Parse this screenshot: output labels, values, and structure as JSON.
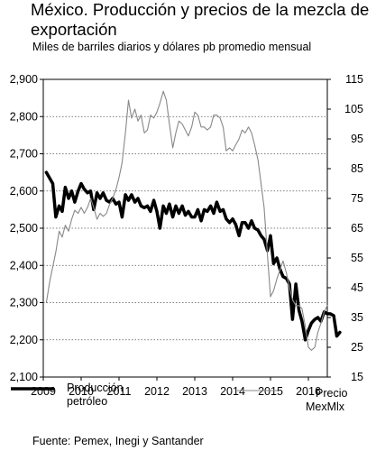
{
  "title": "México. Producción y precios de la mezcla de exportación",
  "subtitle": "Miles de barriles diarios y dólares pb promedio mensual",
  "source": "Fuente: Pemex, Inegi y Santander",
  "chart_data": {
    "type": "line",
    "x_ticks": [
      "2009",
      "2010",
      "2011",
      "2012",
      "2013",
      "2014",
      "2015",
      "2016"
    ],
    "xlim": [
      2009.0,
      2016.5
    ],
    "y_left": {
      "ticks": [
        "2,100",
        "2,200",
        "2,300",
        "2,400",
        "2,500",
        "2,600",
        "2,700",
        "2,800",
        "2,900"
      ],
      "ylim": [
        2100,
        2900
      ]
    },
    "y_right": {
      "ticks": [
        "15",
        "25",
        "35",
        "45",
        "55",
        "65",
        "75",
        "85",
        "95",
        "105",
        "115"
      ],
      "ylim": [
        15,
        115
      ]
    },
    "grid": "horizontal dotted",
    "legend_position": "bottom",
    "series": [
      {
        "name": "Producción petróleo",
        "axis": "left",
        "color": "#000000",
        "style": "thick solid",
        "points": [
          [
            2009.08,
            2650
          ],
          [
            2009.25,
            2620
          ],
          [
            2009.33,
            2530
          ],
          [
            2009.42,
            2560
          ],
          [
            2009.5,
            2545
          ],
          [
            2009.58,
            2610
          ],
          [
            2009.67,
            2580
          ],
          [
            2009.75,
            2600
          ],
          [
            2009.83,
            2570
          ],
          [
            2009.92,
            2600
          ],
          [
            2010.0,
            2620
          ],
          [
            2010.08,
            2605
          ],
          [
            2010.17,
            2595
          ],
          [
            2010.25,
            2600
          ],
          [
            2010.33,
            2550
          ],
          [
            2010.42,
            2595
          ],
          [
            2010.5,
            2580
          ],
          [
            2010.58,
            2595
          ],
          [
            2010.67,
            2575
          ],
          [
            2010.75,
            2570
          ],
          [
            2010.83,
            2580
          ],
          [
            2010.92,
            2565
          ],
          [
            2011.0,
            2570
          ],
          [
            2011.08,
            2530
          ],
          [
            2011.17,
            2590
          ],
          [
            2011.25,
            2575
          ],
          [
            2011.33,
            2590
          ],
          [
            2011.42,
            2570
          ],
          [
            2011.5,
            2580
          ],
          [
            2011.58,
            2560
          ],
          [
            2011.67,
            2555
          ],
          [
            2011.75,
            2560
          ],
          [
            2011.83,
            2545
          ],
          [
            2011.92,
            2575
          ],
          [
            2012.0,
            2545
          ],
          [
            2012.08,
            2500
          ],
          [
            2012.17,
            2560
          ],
          [
            2012.25,
            2540
          ],
          [
            2012.33,
            2565
          ],
          [
            2012.42,
            2530
          ],
          [
            2012.5,
            2560
          ],
          [
            2012.58,
            2540
          ],
          [
            2012.67,
            2560
          ],
          [
            2012.75,
            2535
          ],
          [
            2012.83,
            2545
          ],
          [
            2012.92,
            2530
          ],
          [
            2013.0,
            2530
          ],
          [
            2013.08,
            2550
          ],
          [
            2013.17,
            2520
          ],
          [
            2013.25,
            2550
          ],
          [
            2013.33,
            2545
          ],
          [
            2013.42,
            2560
          ],
          [
            2013.5,
            2540
          ],
          [
            2013.58,
            2570
          ],
          [
            2013.67,
            2545
          ],
          [
            2013.75,
            2550
          ],
          [
            2013.83,
            2525
          ],
          [
            2013.92,
            2515
          ],
          [
            2014.0,
            2525
          ],
          [
            2014.08,
            2510
          ],
          [
            2014.17,
            2480
          ],
          [
            2014.25,
            2515
          ],
          [
            2014.33,
            2515
          ],
          [
            2014.42,
            2500
          ],
          [
            2014.5,
            2520
          ],
          [
            2014.58,
            2500
          ],
          [
            2014.67,
            2495
          ],
          [
            2014.75,
            2480
          ],
          [
            2014.83,
            2470
          ],
          [
            2014.92,
            2440
          ],
          [
            2015.0,
            2480
          ],
          [
            2015.08,
            2405
          ],
          [
            2015.17,
            2420
          ],
          [
            2015.25,
            2390
          ],
          [
            2015.33,
            2370
          ],
          [
            2015.42,
            2365
          ],
          [
            2015.5,
            2350
          ],
          [
            2015.58,
            2255
          ],
          [
            2015.67,
            2350
          ],
          [
            2015.75,
            2280
          ],
          [
            2015.83,
            2250
          ],
          [
            2015.92,
            2200
          ],
          [
            2016.0,
            2225
          ],
          [
            2016.08,
            2245
          ],
          [
            2016.17,
            2255
          ],
          [
            2016.25,
            2260
          ],
          [
            2016.33,
            2250
          ],
          [
            2016.42,
            2275
          ],
          [
            2016.5,
            2270
          ],
          [
            2016.58,
            2270
          ],
          [
            2016.67,
            2265
          ],
          [
            2016.75,
            2210
          ],
          [
            2016.83,
            2220
          ]
        ]
      },
      {
        "name": "Precio MexMlx",
        "axis": "right",
        "color": "#888888",
        "style": "thin solid",
        "points": [
          [
            2009.08,
            40
          ],
          [
            2009.17,
            47
          ],
          [
            2009.25,
            52
          ],
          [
            2009.33,
            57
          ],
          [
            2009.42,
            64
          ],
          [
            2009.5,
            62
          ],
          [
            2009.58,
            66
          ],
          [
            2009.67,
            64
          ],
          [
            2009.75,
            68
          ],
          [
            2009.83,
            71
          ],
          [
            2009.92,
            70
          ],
          [
            2010.0,
            72
          ],
          [
            2010.08,
            70
          ],
          [
            2010.17,
            72
          ],
          [
            2010.25,
            75
          ],
          [
            2010.33,
            72
          ],
          [
            2010.42,
            68
          ],
          [
            2010.5,
            70
          ],
          [
            2010.58,
            69
          ],
          [
            2010.67,
            70
          ],
          [
            2010.75,
            73
          ],
          [
            2010.83,
            75
          ],
          [
            2010.92,
            78
          ],
          [
            2011.0,
            82
          ],
          [
            2011.08,
            87
          ],
          [
            2011.17,
            97
          ],
          [
            2011.25,
            108
          ],
          [
            2011.33,
            102
          ],
          [
            2011.42,
            105
          ],
          [
            2011.5,
            101
          ],
          [
            2011.58,
            103
          ],
          [
            2011.67,
            97
          ],
          [
            2011.75,
            98
          ],
          [
            2011.83,
            103
          ],
          [
            2011.92,
            102
          ],
          [
            2012.0,
            104
          ],
          [
            2012.08,
            107
          ],
          [
            2012.17,
            111
          ],
          [
            2012.25,
            108
          ],
          [
            2012.33,
            100
          ],
          [
            2012.42,
            92
          ],
          [
            2012.5,
            97
          ],
          [
            2012.58,
            101
          ],
          [
            2012.67,
            100
          ],
          [
            2012.75,
            98
          ],
          [
            2012.83,
            96
          ],
          [
            2012.92,
            99
          ],
          [
            2013.0,
            104
          ],
          [
            2013.08,
            103
          ],
          [
            2013.17,
            99
          ],
          [
            2013.25,
            99
          ],
          [
            2013.33,
            98
          ],
          [
            2013.42,
            99
          ],
          [
            2013.5,
            103
          ],
          [
            2013.58,
            103
          ],
          [
            2013.67,
            102
          ],
          [
            2013.75,
            99
          ],
          [
            2013.83,
            91
          ],
          [
            2013.92,
            92
          ],
          [
            2014.0,
            91
          ],
          [
            2014.08,
            93
          ],
          [
            2014.17,
            95
          ],
          [
            2014.25,
            98
          ],
          [
            2014.33,
            97
          ],
          [
            2014.42,
            99
          ],
          [
            2014.5,
            97
          ],
          [
            2014.58,
            93
          ],
          [
            2014.67,
            88
          ],
          [
            2014.75,
            80
          ],
          [
            2014.83,
            72
          ],
          [
            2014.92,
            56
          ],
          [
            2015.0,
            42
          ],
          [
            2015.08,
            44
          ],
          [
            2015.17,
            48
          ],
          [
            2015.25,
            51
          ],
          [
            2015.33,
            54
          ],
          [
            2015.42,
            50
          ],
          [
            2015.5,
            45
          ],
          [
            2015.58,
            41
          ],
          [
            2015.67,
            39
          ],
          [
            2015.75,
            39
          ],
          [
            2015.83,
            38
          ],
          [
            2015.92,
            32
          ],
          [
            2016.0,
            25
          ],
          [
            2016.08,
            24
          ],
          [
            2016.17,
            25
          ],
          [
            2016.25,
            30
          ],
          [
            2016.33,
            33
          ],
          [
            2016.42,
            37
          ],
          [
            2016.5,
            39
          ]
        ]
      }
    ]
  }
}
